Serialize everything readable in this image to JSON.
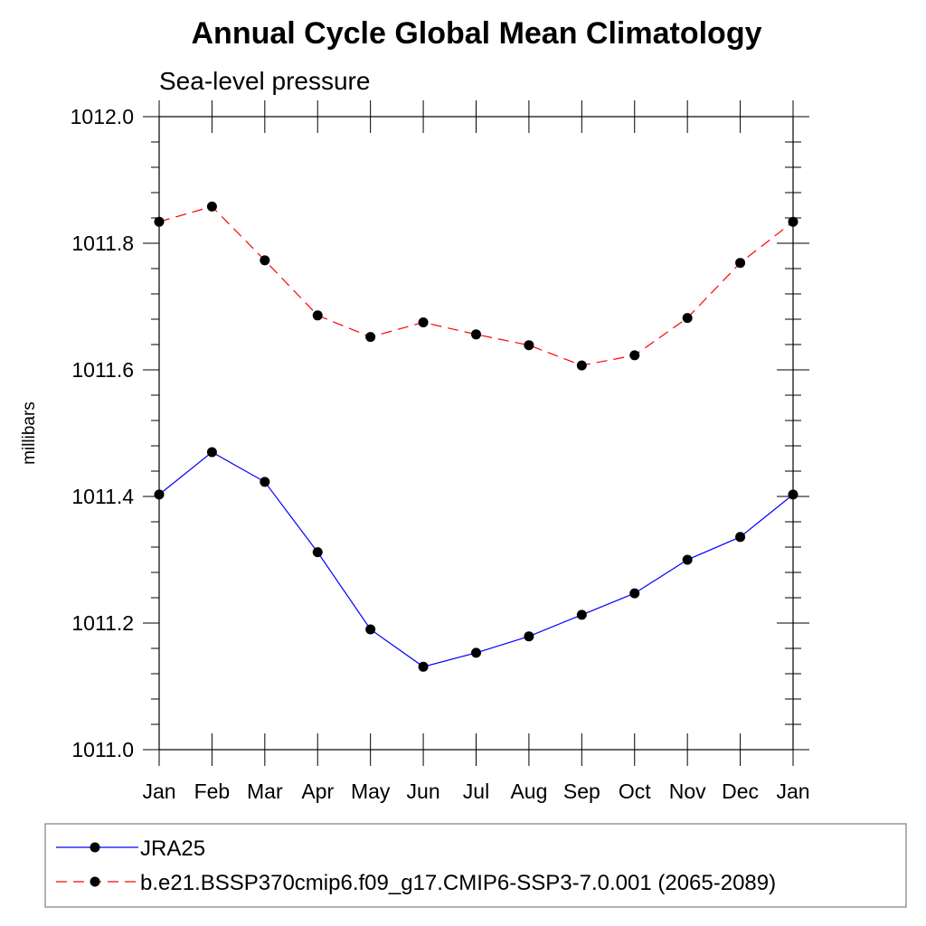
{
  "chart_data": {
    "type": "line",
    "title": "Annual Cycle Global Mean Climatology",
    "subtitle": "Sea-level pressure",
    "xlabel": "",
    "ylabel": "millibars",
    "categories": [
      "Jan",
      "Feb",
      "Mar",
      "Apr",
      "May",
      "Jun",
      "Jul",
      "Aug",
      "Sep",
      "Oct",
      "Nov",
      "Dec",
      "Jan"
    ],
    "ylim": [
      1011.0,
      1012.0
    ],
    "yticks": [
      "1011.0",
      "1011.2",
      "1011.4",
      "1011.6",
      "1011.8",
      "1012.0"
    ],
    "series": [
      {
        "name": "JRA25",
        "color": "#0000ff",
        "dash": "solid",
        "values": [
          1011.403,
          1011.47,
          1011.423,
          1011.312,
          1011.19,
          1011.131,
          1011.153,
          1011.179,
          1011.213,
          1011.247,
          1011.3,
          1011.336,
          1011.403
        ]
      },
      {
        "name": "b.e21.BSSP370cmip6.f09_g17.CMIP6-SSP3-7.0.001 (2065-2089)",
        "color": "#ff0000",
        "dash": "dashed",
        "values": [
          1011.834,
          1011.858,
          1011.773,
          1011.686,
          1011.652,
          1011.675,
          1011.656,
          1011.639,
          1011.607,
          1011.623,
          1011.682,
          1011.769,
          1011.834
        ]
      }
    ],
    "legend": "bottom",
    "grid": false
  }
}
